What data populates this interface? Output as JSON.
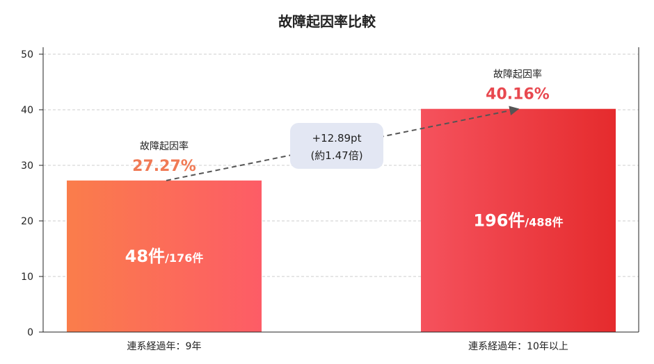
{
  "chart_data": {
    "type": "bar",
    "title": "故障起因率比較",
    "categories": [
      "連系経過年：9年",
      "連系経過年：10年以上"
    ],
    "values": [
      27.27,
      40.16
    ],
    "ylim": [
      0,
      50
    ],
    "yticks": [
      0,
      10,
      20,
      30,
      40,
      50
    ],
    "grid": true,
    "rate_label": "故障起因率",
    "value_labels": [
      "27.27%",
      "40.16%"
    ],
    "count_main": [
      "48件",
      "196件"
    ],
    "count_sub": [
      "/176件",
      "/488件"
    ],
    "difference": {
      "line1": "+12.89pt",
      "line2": "(約1.47倍)"
    }
  },
  "colors": {
    "bar1_start": "#FA7D4B",
    "bar1_end": "#FD5C66",
    "bar2_start": "#F5525D",
    "bar2_end": "#E52B2D",
    "value1": "#F07A55",
    "value2": "#E8484F",
    "grid": "#cccccc",
    "badge": "#E3E7F3",
    "arrow": "#555555"
  }
}
